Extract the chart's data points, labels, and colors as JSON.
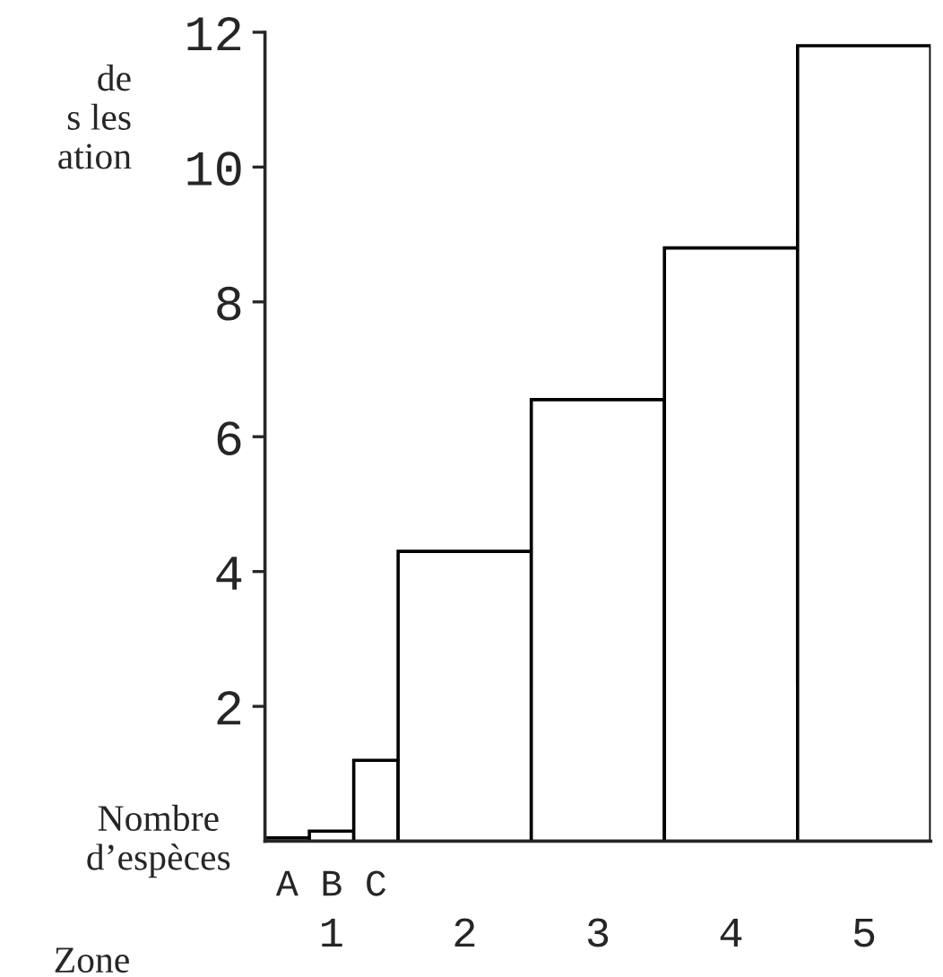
{
  "chart_data": {
    "type": "bar",
    "categories": [
      "1",
      "2",
      "3",
      "4",
      "5"
    ],
    "series": [
      {
        "name": "A",
        "color": "#ffffff",
        "values": [
          0.05,
          null,
          null,
          null,
          null
        ]
      },
      {
        "name": "B",
        "color": "#ffffff",
        "values": [
          0.15,
          null,
          null,
          null,
          null
        ]
      },
      {
        "name": "C",
        "color": "#ffffff",
        "values": [
          1.2,
          null,
          null,
          null,
          null
        ]
      },
      {
        "color": "#ffffff",
        "values": [
          null,
          4.3,
          6.55,
          8.8,
          11.8
        ]
      }
    ],
    "ylabel": "de\ns les\nation",
    "xlabel": "Zone",
    "annotations": [
      "Nombre\nd’espèces"
    ],
    "ylim": [
      0,
      12
    ],
    "yticks": [
      2,
      4,
      6,
      8,
      10,
      12
    ],
    "grid": false,
    "legend": false
  }
}
